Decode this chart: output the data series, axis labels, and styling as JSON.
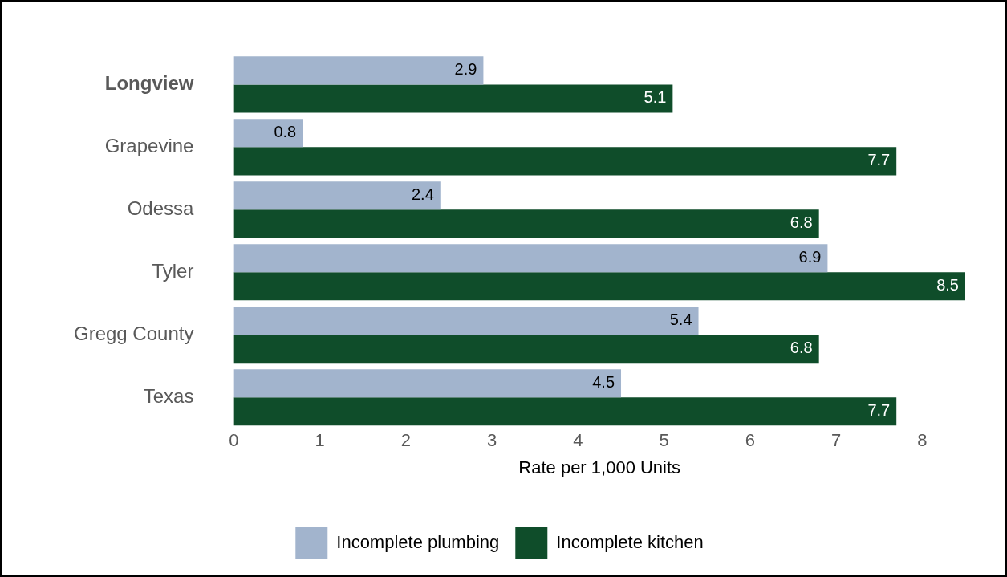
{
  "chart_data": {
    "type": "bar",
    "orientation": "horizontal",
    "xlabel": "Rate per 1,000 Units",
    "categories": [
      "Longview",
      "Grapevine",
      "Odessa",
      "Tyler",
      "Gregg County",
      "Texas"
    ],
    "series": [
      {
        "name": "Incomplete plumbing",
        "color": "#a2b4cd",
        "values": [
          2.9,
          0.8,
          2.4,
          6.9,
          5.4,
          4.5
        ]
      },
      {
        "name": "Incomplete kitchen",
        "color": "#0f4d2a",
        "values": [
          5.1,
          7.7,
          6.8,
          8.5,
          6.8,
          7.7
        ]
      }
    ],
    "xlim": [
      0,
      8.5
    ],
    "xticks": [
      0,
      1,
      2,
      3,
      4,
      5,
      6,
      7,
      8
    ],
    "data_labels": true,
    "grid": false,
    "legend": "bottom"
  }
}
